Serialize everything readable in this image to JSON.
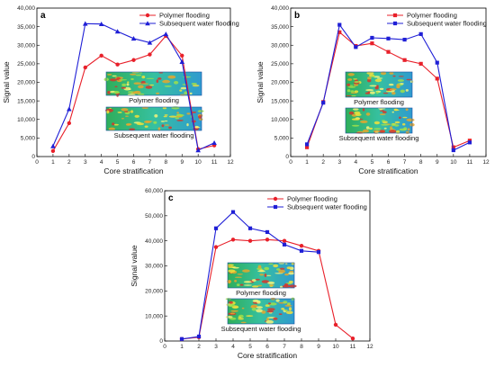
{
  "figure": {
    "x_label": "Core stratification",
    "y_label": "Signal value"
  },
  "chart_data": [
    {
      "type": "line",
      "panel_label": "a",
      "xlabel": "Core stratification",
      "ylabel": "Signal value",
      "xlim": [
        0,
        12
      ],
      "ylim": [
        0,
        40000
      ],
      "xticks": [
        0,
        1,
        2,
        3,
        4,
        5,
        6,
        7,
        8,
        9,
        10,
        11,
        12
      ],
      "yticks": [
        0,
        5000,
        10000,
        15000,
        20000,
        25000,
        30000,
        35000,
        40000
      ],
      "ytick_labels": [
        "0",
        "5,000",
        "10,000",
        "15,000",
        "20,000",
        "25,000",
        "30,000",
        "35,000",
        "40,000"
      ],
      "legend_position": "top-right",
      "series": [
        {
          "name": "Polymer flooding",
          "color": "#e8202a",
          "marker": "circle",
          "x": [
            1,
            2,
            3,
            4,
            5,
            6,
            7,
            8,
            9,
            10,
            11
          ],
          "y": [
            1500,
            9000,
            24000,
            27200,
            24800,
            26000,
            27500,
            32500,
            27200,
            2000,
            3000
          ]
        },
        {
          "name": "Subsequent water flooding",
          "color": "#1f1fd6",
          "marker": "triangle",
          "x": [
            1,
            2,
            3,
            4,
            5,
            6,
            7,
            8,
            9,
            10,
            11
          ],
          "y": [
            2800,
            12800,
            35800,
            35700,
            33700,
            31800,
            30700,
            33000,
            25500,
            1700,
            3700
          ]
        }
      ],
      "insets": [
        "Polymer flooding",
        "Subsequent water flooding"
      ]
    },
    {
      "type": "line",
      "panel_label": "b",
      "xlabel": "Core stratification",
      "ylabel": "Signal value",
      "xlim": [
        0,
        12
      ],
      "ylim": [
        0,
        40000
      ],
      "xticks": [
        0,
        1,
        2,
        3,
        4,
        5,
        6,
        7,
        8,
        9,
        10,
        11,
        12
      ],
      "yticks": [
        0,
        5000,
        10000,
        15000,
        20000,
        25000,
        30000,
        35000,
        40000
      ],
      "ytick_labels": [
        "0",
        "5,000",
        "10,000",
        "15,000",
        "20,000",
        "25,000",
        "30,000",
        "35,000",
        "40,000"
      ],
      "legend_position": "top-right",
      "series": [
        {
          "name": "Polymer flooding",
          "color": "#e8202a",
          "marker": "square",
          "x": [
            1,
            2,
            3,
            4,
            5,
            6,
            7,
            8,
            9,
            10,
            11
          ],
          "y": [
            2500,
            14700,
            33500,
            29800,
            30500,
            28200,
            26000,
            25000,
            21000,
            2500,
            4300
          ]
        },
        {
          "name": "Subsequent water flooding",
          "color": "#1f1fd6",
          "marker": "square",
          "x": [
            1,
            2,
            3,
            4,
            5,
            6,
            7,
            8,
            9,
            10,
            11
          ],
          "y": [
            3300,
            14500,
            35500,
            29500,
            32000,
            31800,
            31500,
            33000,
            25300,
            1700,
            3800
          ]
        }
      ],
      "insets": [
        "Polymer flooding",
        "Subsequent water flooding"
      ]
    },
    {
      "type": "line",
      "panel_label": "c",
      "xlabel": "Core stratification",
      "ylabel": "Signal value",
      "xlim": [
        0,
        12
      ],
      "ylim": [
        0,
        60000
      ],
      "xticks": [
        0,
        1,
        2,
        3,
        4,
        5,
        6,
        7,
        8,
        9,
        10,
        11,
        12
      ],
      "yticks": [
        0,
        10000,
        20000,
        30000,
        40000,
        50000,
        60000
      ],
      "ytick_labels": [
        "0",
        "10,000",
        "20,000",
        "30,000",
        "40,000",
        "50,000",
        "60,000"
      ],
      "legend_position": "top-right",
      "series": [
        {
          "name": "Polymer flooding",
          "color": "#e8202a",
          "marker": "circle",
          "x": [
            1,
            2,
            3,
            4,
            5,
            6,
            7,
            8,
            9,
            10,
            11
          ],
          "y": [
            800,
            1500,
            37500,
            40500,
            40000,
            40500,
            40000,
            38000,
            36000,
            6500,
            1000
          ]
        },
        {
          "name": "Subsequent water flooding",
          "color": "#1f1fd6",
          "marker": "square",
          "x": [
            1,
            2,
            3,
            4,
            5,
            6,
            7,
            8,
            9
          ],
          "y": [
            800,
            1800,
            45000,
            51500,
            45000,
            43500,
            38500,
            36000,
            35500
          ]
        }
      ],
      "insets": [
        "Polymer flooding",
        "Subsequent water flooding"
      ]
    }
  ]
}
